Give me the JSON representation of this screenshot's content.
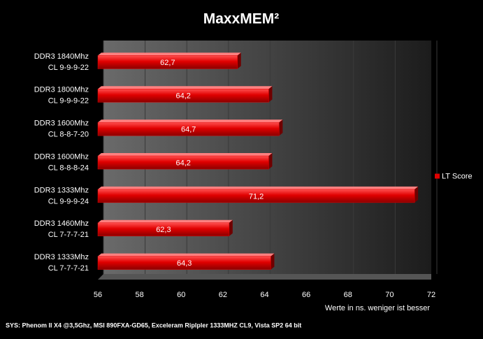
{
  "chart_data": {
    "type": "bar",
    "orientation": "horizontal",
    "title": "MaxxMEM²",
    "categories": [
      [
        "DDR3 1840Mhz",
        "CL 9-9-9-22"
      ],
      [
        "DDR3 1800Mhz",
        "CL 9-9-9-22"
      ],
      [
        "DDR3 1600Mhz",
        "CL 8-8-7-20"
      ],
      [
        "DDR3 1600Mhz",
        "CL 8-8-8-24"
      ],
      [
        "DDR3 1333Mhz",
        "CL 9-9-9-24"
      ],
      [
        "DDR3 1460Mhz",
        "CL 7-7-7-21"
      ],
      [
        "DDR3 1333Mhz",
        "CL 7-7-7-21"
      ]
    ],
    "series": [
      {
        "name": "LT Score",
        "color": "#e00000",
        "values": [
          62.7,
          64.2,
          64.7,
          64.2,
          71.2,
          62.3,
          64.3
        ],
        "value_labels": [
          "62,7",
          "64,2",
          "64,7",
          "64,2",
          "71,2",
          "62,3",
          "64,3"
        ]
      }
    ],
    "xlim": [
      56,
      72
    ],
    "xticks": [
      56,
      58,
      60,
      62,
      64,
      66,
      68,
      70,
      72
    ],
    "x_label": "Werte in  ns. weniger ist besser",
    "footer": "SYS: Phenom II X4 @3,5Ghz, MSI 890FXA-GD65, Exceleram Riplpler 1333MHZ CL9, Vista SP2 64 bit",
    "grid": true,
    "legend": "right"
  }
}
